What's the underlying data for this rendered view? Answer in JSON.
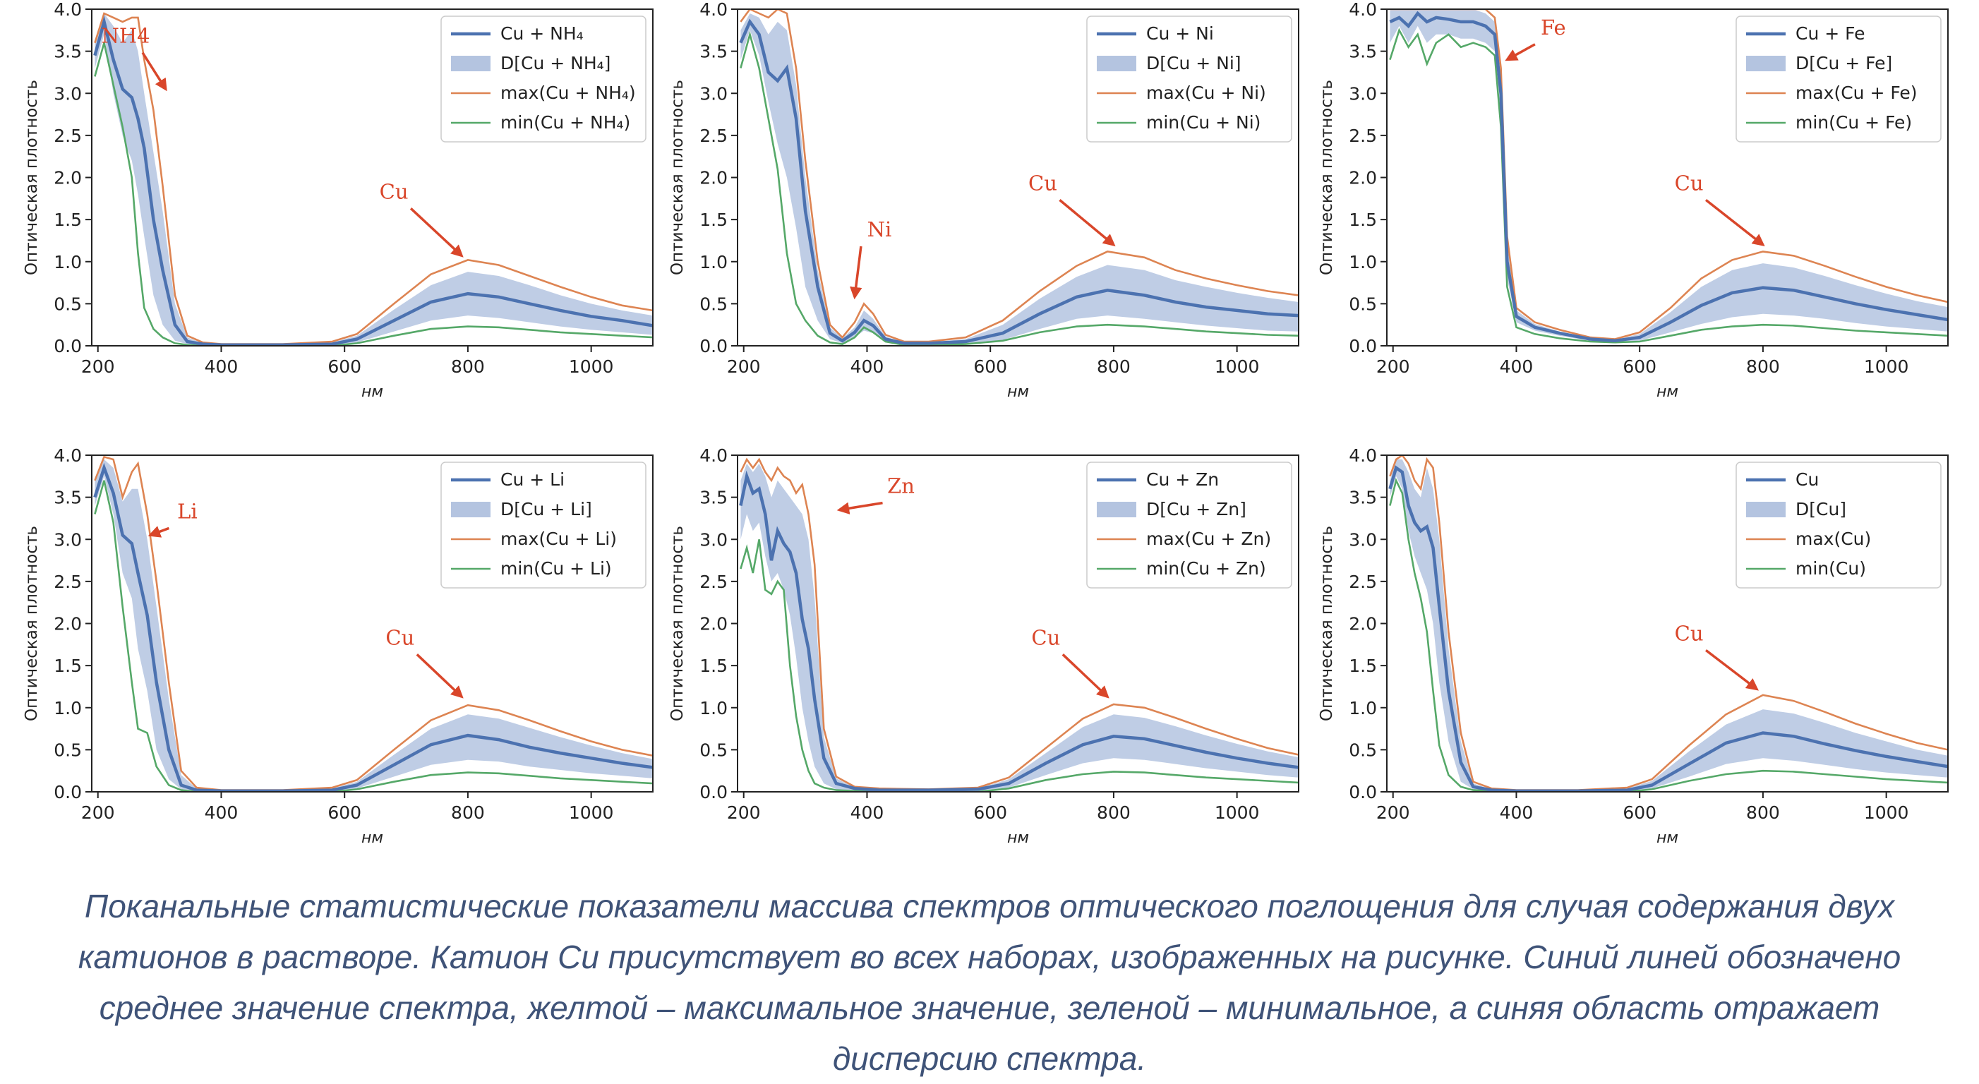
{
  "figure": {
    "ylabel": "Оптическая плотность",
    "xlabel": "нм",
    "xlim": [
      190,
      1100
    ],
    "ylim": [
      0,
      4.0
    ],
    "xticks": [
      200,
      400,
      600,
      800,
      1000
    ],
    "yticks": [
      0.0,
      0.5,
      1.0,
      1.5,
      2.0,
      2.5,
      3.0,
      3.5,
      4.0
    ],
    "colors": {
      "mean": "#4c72b0",
      "dispersion": "#b4c4e0",
      "max": "#dd8452",
      "min": "#55a868",
      "annotation": "#d9462a"
    },
    "legend_position": "upper right"
  },
  "chart_data": [
    {
      "type": "line",
      "legend": [
        "Cu + NH₄",
        "D[Cu + NH₄]",
        "max(Cu + NH₄)",
        "min(Cu + NH₄)"
      ],
      "annotations": [
        {
          "text": "NH4",
          "x": 245,
          "y": 3.6,
          "tx": 310,
          "ty": 3.05
        },
        {
          "text": "Cu",
          "x": 680,
          "y": 1.75,
          "tx": 790,
          "ty": 1.07
        }
      ],
      "series": {
        "x": [
          195,
          210,
          225,
          240,
          255,
          265,
          275,
          290,
          305,
          325,
          345,
          370,
          400,
          500,
          580,
          620,
          680,
          740,
          800,
          850,
          900,
          950,
          1000,
          1050,
          1100
        ],
        "mean": [
          3.45,
          3.85,
          3.4,
          3.05,
          2.95,
          2.7,
          2.35,
          1.5,
          0.9,
          0.25,
          0.05,
          0.02,
          0.01,
          0.01,
          0.02,
          0.08,
          0.3,
          0.52,
          0.62,
          0.58,
          0.5,
          0.42,
          0.35,
          0.3,
          0.24
        ],
        "max": [
          3.6,
          3.95,
          3.9,
          3.85,
          3.9,
          3.9,
          3.4,
          2.8,
          1.9,
          0.6,
          0.12,
          0.04,
          0.02,
          0.02,
          0.05,
          0.14,
          0.5,
          0.85,
          1.02,
          0.96,
          0.83,
          0.7,
          0.58,
          0.48,
          0.42
        ],
        "min": [
          3.2,
          3.6,
          3.1,
          2.6,
          2.0,
          1.1,
          0.45,
          0.2,
          0.1,
          0.03,
          0.01,
          0.0,
          0.0,
          0.0,
          0.0,
          0.03,
          0.12,
          0.2,
          0.23,
          0.22,
          0.19,
          0.16,
          0.14,
          0.12,
          0.1
        ],
        "d_hi": [
          3.6,
          3.95,
          3.8,
          3.6,
          3.75,
          3.5,
          3.0,
          2.3,
          1.6,
          0.5,
          0.1,
          0.03,
          0.02,
          0.02,
          0.04,
          0.12,
          0.43,
          0.72,
          0.88,
          0.83,
          0.72,
          0.6,
          0.5,
          0.42,
          0.36
        ],
        "d_lo": [
          3.3,
          3.7,
          3.0,
          2.5,
          2.2,
          1.8,
          1.3,
          0.6,
          0.25,
          0.06,
          0.02,
          0.01,
          0.0,
          0.0,
          0.0,
          0.04,
          0.17,
          0.3,
          0.36,
          0.33,
          0.28,
          0.23,
          0.19,
          0.16,
          0.13
        ]
      }
    },
    {
      "type": "line",
      "legend": [
        "Cu + Ni",
        "D[Cu + Ni]",
        "max(Cu + Ni)",
        "min(Cu + Ni)"
      ],
      "annotations": [
        {
          "text": "Ni",
          "x": 420,
          "y": 1.3,
          "tx": 380,
          "ty": 0.58
        },
        {
          "text": "Cu",
          "x": 685,
          "y": 1.85,
          "tx": 800,
          "ty": 1.2
        }
      ],
      "series": {
        "x": [
          195,
          210,
          225,
          240,
          255,
          270,
          285,
          300,
          320,
          340,
          360,
          380,
          395,
          410,
          430,
          460,
          500,
          560,
          620,
          680,
          740,
          790,
          850,
          900,
          950,
          1000,
          1050,
          1100
        ],
        "mean": [
          3.6,
          3.85,
          3.7,
          3.25,
          3.15,
          3.3,
          2.7,
          1.6,
          0.7,
          0.15,
          0.06,
          0.16,
          0.3,
          0.24,
          0.08,
          0.03,
          0.03,
          0.05,
          0.15,
          0.38,
          0.58,
          0.66,
          0.6,
          0.52,
          0.46,
          0.42,
          0.38,
          0.36
        ],
        "max": [
          3.85,
          4.0,
          3.95,
          3.9,
          4.0,
          3.95,
          3.3,
          2.2,
          1.0,
          0.25,
          0.1,
          0.28,
          0.5,
          0.38,
          0.13,
          0.05,
          0.05,
          0.1,
          0.3,
          0.65,
          0.95,
          1.12,
          1.05,
          0.9,
          0.8,
          0.72,
          0.65,
          0.6
        ],
        "min": [
          3.3,
          3.7,
          3.3,
          2.7,
          2.1,
          1.1,
          0.5,
          0.3,
          0.12,
          0.04,
          0.02,
          0.1,
          0.22,
          0.16,
          0.05,
          0.01,
          0.01,
          0.02,
          0.06,
          0.16,
          0.23,
          0.25,
          0.23,
          0.2,
          0.17,
          0.15,
          0.13,
          0.12
        ],
        "d_hi": [
          3.75,
          3.95,
          3.9,
          3.7,
          3.85,
          3.75,
          3.1,
          2.0,
          0.9,
          0.22,
          0.09,
          0.22,
          0.42,
          0.32,
          0.11,
          0.04,
          0.04,
          0.08,
          0.25,
          0.56,
          0.82,
          0.96,
          0.9,
          0.78,
          0.7,
          0.63,
          0.57,
          0.52
        ],
        "d_lo": [
          3.4,
          3.75,
          3.45,
          2.9,
          2.4,
          2.0,
          1.4,
          0.7,
          0.3,
          0.08,
          0.03,
          0.1,
          0.18,
          0.15,
          0.05,
          0.02,
          0.02,
          0.03,
          0.07,
          0.2,
          0.32,
          0.36,
          0.32,
          0.28,
          0.24,
          0.21,
          0.18,
          0.17
        ]
      }
    },
    {
      "type": "line",
      "legend": [
        "Cu + Fe",
        "D[Cu + Fe]",
        "max(Cu + Fe)",
        "min(Cu + Fe)"
      ],
      "annotations": [
        {
          "text": "Fe",
          "x": 460,
          "y": 3.7,
          "tx": 385,
          "ty": 3.4
        },
        {
          "text": "Cu",
          "x": 680,
          "y": 1.85,
          "tx": 800,
          "ty": 1.2
        }
      ],
      "series": {
        "x": [
          195,
          210,
          225,
          240,
          255,
          270,
          290,
          310,
          330,
          350,
          365,
          375,
          385,
          400,
          430,
          470,
          520,
          560,
          600,
          650,
          700,
          750,
          800,
          850,
          900,
          950,
          1000,
          1050,
          1100
        ],
        "mean": [
          3.85,
          3.9,
          3.8,
          3.95,
          3.85,
          3.9,
          3.88,
          3.85,
          3.85,
          3.8,
          3.7,
          3.0,
          1.0,
          0.35,
          0.22,
          0.15,
          0.08,
          0.06,
          0.1,
          0.28,
          0.48,
          0.63,
          0.69,
          0.66,
          0.58,
          0.5,
          0.43,
          0.37,
          0.31
        ],
        "max": [
          4.0,
          4.0,
          4.0,
          4.0,
          4.0,
          4.0,
          4.0,
          4.0,
          4.0,
          4.0,
          3.9,
          3.3,
          1.3,
          0.45,
          0.28,
          0.19,
          0.1,
          0.08,
          0.16,
          0.45,
          0.8,
          1.02,
          1.12,
          1.07,
          0.95,
          0.82,
          0.7,
          0.6,
          0.52
        ],
        "min": [
          3.4,
          3.75,
          3.55,
          3.7,
          3.35,
          3.6,
          3.7,
          3.55,
          3.6,
          3.55,
          3.45,
          2.6,
          0.7,
          0.22,
          0.14,
          0.09,
          0.05,
          0.04,
          0.05,
          0.12,
          0.19,
          0.23,
          0.25,
          0.24,
          0.21,
          0.18,
          0.16,
          0.14,
          0.12
        ],
        "d_hi": [
          4.0,
          4.0,
          4.0,
          4.0,
          4.0,
          4.0,
          4.0,
          4.0,
          4.0,
          3.95,
          3.85,
          3.2,
          1.2,
          0.42,
          0.26,
          0.17,
          0.09,
          0.07,
          0.14,
          0.4,
          0.7,
          0.9,
          0.98,
          0.93,
          0.83,
          0.72,
          0.62,
          0.53,
          0.46
        ],
        "d_lo": [
          3.6,
          3.8,
          3.6,
          3.8,
          3.6,
          3.7,
          3.7,
          3.65,
          3.65,
          3.6,
          3.5,
          2.8,
          0.8,
          0.28,
          0.18,
          0.12,
          0.06,
          0.05,
          0.06,
          0.16,
          0.26,
          0.34,
          0.38,
          0.36,
          0.32,
          0.27,
          0.23,
          0.2,
          0.17
        ]
      }
    },
    {
      "type": "line",
      "legend": [
        "Cu + Li",
        "D[Cu + Li]",
        "max(Cu + Li)",
        "min(Cu + Li)"
      ],
      "annotations": [
        {
          "text": "Li",
          "x": 345,
          "y": 3.25,
          "tx": 285,
          "ty": 3.05
        },
        {
          "text": "Cu",
          "x": 690,
          "y": 1.75,
          "tx": 790,
          "ty": 1.13
        }
      ],
      "series": {
        "x": [
          195,
          210,
          225,
          240,
          255,
          265,
          280,
          295,
          315,
          335,
          360,
          400,
          500,
          580,
          620,
          680,
          740,
          800,
          850,
          900,
          950,
          1000,
          1050,
          1100
        ],
        "mean": [
          3.5,
          3.85,
          3.55,
          3.05,
          2.95,
          2.6,
          2.1,
          1.3,
          0.5,
          0.08,
          0.02,
          0.01,
          0.01,
          0.02,
          0.08,
          0.32,
          0.56,
          0.67,
          0.62,
          0.53,
          0.46,
          0.4,
          0.34,
          0.29
        ],
        "max": [
          3.7,
          3.98,
          3.95,
          3.5,
          3.8,
          3.9,
          3.3,
          2.5,
          1.3,
          0.25,
          0.05,
          0.02,
          0.02,
          0.05,
          0.14,
          0.5,
          0.85,
          1.03,
          0.97,
          0.85,
          0.72,
          0.6,
          0.5,
          0.43
        ],
        "min": [
          3.3,
          3.7,
          3.2,
          2.2,
          1.3,
          0.75,
          0.7,
          0.3,
          0.08,
          0.02,
          0.0,
          0.0,
          0.0,
          0.0,
          0.03,
          0.12,
          0.2,
          0.23,
          0.22,
          0.19,
          0.16,
          0.14,
          0.12,
          0.1
        ],
        "d_hi": [
          3.7,
          3.95,
          3.85,
          3.45,
          3.6,
          3.6,
          3.0,
          2.2,
          1.1,
          0.2,
          0.04,
          0.02,
          0.02,
          0.04,
          0.12,
          0.44,
          0.75,
          0.92,
          0.87,
          0.76,
          0.65,
          0.55,
          0.46,
          0.39
        ],
        "d_lo": [
          3.4,
          3.75,
          3.3,
          2.6,
          2.3,
          1.7,
          1.2,
          0.5,
          0.15,
          0.03,
          0.01,
          0.0,
          0.0,
          0.0,
          0.04,
          0.18,
          0.32,
          0.38,
          0.36,
          0.3,
          0.26,
          0.22,
          0.19,
          0.16
        ]
      }
    },
    {
      "type": "line",
      "legend": [
        "Cu + Zn",
        "D[Cu + Zn]",
        "max(Cu + Zn)",
        "min(Cu + Zn)"
      ],
      "annotations": [
        {
          "text": "Zn",
          "x": 455,
          "y": 3.55,
          "tx": 355,
          "ty": 3.35
        },
        {
          "text": "Cu",
          "x": 690,
          "y": 1.75,
          "tx": 790,
          "ty": 1.13
        }
      ],
      "series": {
        "x": [
          195,
          205,
          215,
          225,
          235,
          245,
          255,
          265,
          275,
          285,
          295,
          305,
          315,
          330,
          350,
          380,
          420,
          500,
          580,
          630,
          690,
          750,
          800,
          850,
          900,
          950,
          1000,
          1050,
          1100
        ],
        "mean": [
          3.4,
          3.75,
          3.55,
          3.6,
          3.3,
          2.75,
          3.1,
          2.95,
          2.85,
          2.6,
          2.05,
          1.7,
          1.1,
          0.4,
          0.1,
          0.04,
          0.02,
          0.02,
          0.03,
          0.1,
          0.34,
          0.56,
          0.66,
          0.63,
          0.55,
          0.47,
          0.4,
          0.34,
          0.29
        ],
        "max": [
          3.8,
          3.95,
          3.85,
          3.95,
          3.8,
          3.7,
          3.85,
          3.75,
          3.7,
          3.55,
          3.65,
          3.3,
          2.7,
          0.75,
          0.18,
          0.06,
          0.04,
          0.03,
          0.05,
          0.17,
          0.52,
          0.87,
          1.04,
          1.0,
          0.88,
          0.75,
          0.63,
          0.52,
          0.44
        ],
        "min": [
          2.65,
          2.9,
          2.6,
          3.0,
          2.4,
          2.35,
          2.5,
          2.4,
          1.5,
          0.9,
          0.5,
          0.25,
          0.1,
          0.05,
          0.02,
          0.01,
          0.01,
          0.0,
          0.0,
          0.04,
          0.14,
          0.21,
          0.24,
          0.23,
          0.2,
          0.17,
          0.15,
          0.13,
          0.11
        ],
        "d_hi": [
          3.7,
          3.9,
          3.8,
          3.9,
          3.75,
          3.5,
          3.7,
          3.6,
          3.5,
          3.4,
          3.3,
          3.0,
          2.3,
          0.65,
          0.16,
          0.05,
          0.03,
          0.03,
          0.04,
          0.15,
          0.46,
          0.77,
          0.92,
          0.88,
          0.78,
          0.67,
          0.57,
          0.48,
          0.41
        ],
        "d_lo": [
          3.0,
          3.3,
          3.1,
          3.2,
          2.8,
          2.5,
          2.6,
          2.4,
          2.1,
          1.6,
          1.0,
          0.6,
          0.3,
          0.1,
          0.03,
          0.02,
          0.01,
          0.01,
          0.01,
          0.05,
          0.2,
          0.34,
          0.4,
          0.38,
          0.33,
          0.28,
          0.24,
          0.2,
          0.17
        ]
      }
    },
    {
      "type": "line",
      "legend": [
        "Cu",
        "D[Cu]",
        "max(Cu)",
        "min(Cu)"
      ],
      "annotations": [
        {
          "text": "Cu",
          "x": 680,
          "y": 1.8,
          "tx": 790,
          "ty": 1.22
        }
      ],
      "series": {
        "x": [
          195,
          205,
          215,
          225,
          235,
          245,
          255,
          265,
          275,
          290,
          310,
          330,
          360,
          400,
          500,
          580,
          620,
          680,
          740,
          800,
          850,
          900,
          950,
          1000,
          1050,
          1100
        ],
        "mean": [
          3.6,
          3.85,
          3.8,
          3.4,
          3.2,
          3.1,
          3.15,
          2.9,
          2.2,
          1.2,
          0.35,
          0.06,
          0.02,
          0.01,
          0.01,
          0.02,
          0.08,
          0.33,
          0.58,
          0.7,
          0.66,
          0.57,
          0.49,
          0.42,
          0.36,
          0.3
        ],
        "max": [
          3.75,
          3.95,
          4.0,
          3.9,
          3.7,
          3.6,
          3.95,
          3.85,
          3.2,
          1.9,
          0.7,
          0.12,
          0.04,
          0.02,
          0.02,
          0.05,
          0.15,
          0.55,
          0.92,
          1.15,
          1.08,
          0.95,
          0.81,
          0.69,
          0.58,
          0.5
        ],
        "min": [
          3.4,
          3.7,
          3.55,
          3.0,
          2.6,
          2.3,
          1.9,
          1.2,
          0.55,
          0.2,
          0.06,
          0.02,
          0.01,
          0.0,
          0.0,
          0.0,
          0.03,
          0.13,
          0.21,
          0.25,
          0.24,
          0.21,
          0.18,
          0.15,
          0.13,
          0.11
        ],
        "d_hi": [
          3.7,
          3.95,
          3.95,
          3.8,
          3.6,
          3.5,
          3.85,
          3.6,
          3.0,
          1.7,
          0.6,
          0.1,
          0.03,
          0.02,
          0.02,
          0.04,
          0.13,
          0.48,
          0.8,
          0.98,
          0.93,
          0.82,
          0.7,
          0.6,
          0.5,
          0.43
        ],
        "d_lo": [
          3.5,
          3.75,
          3.6,
          3.1,
          2.8,
          2.6,
          2.4,
          2.0,
          1.3,
          0.6,
          0.12,
          0.03,
          0.01,
          0.0,
          0.0,
          0.0,
          0.04,
          0.18,
          0.33,
          0.4,
          0.37,
          0.32,
          0.27,
          0.23,
          0.2,
          0.17
        ]
      }
    }
  ],
  "caption": {
    "line1": "Поканальные статистические показатели массива спектров оптического поглощения для случая содержания двух",
    "line2": "катионов в растворе.  Катион Cu присутствует во всех наборах, изображенных на рисунке. Синий линей обозначено",
    "line3": "среднее значение спектра, желтой – максимальное значение, зеленой – минимальное, а синяя область отражает",
    "line4": "дисперсию спектра."
  }
}
